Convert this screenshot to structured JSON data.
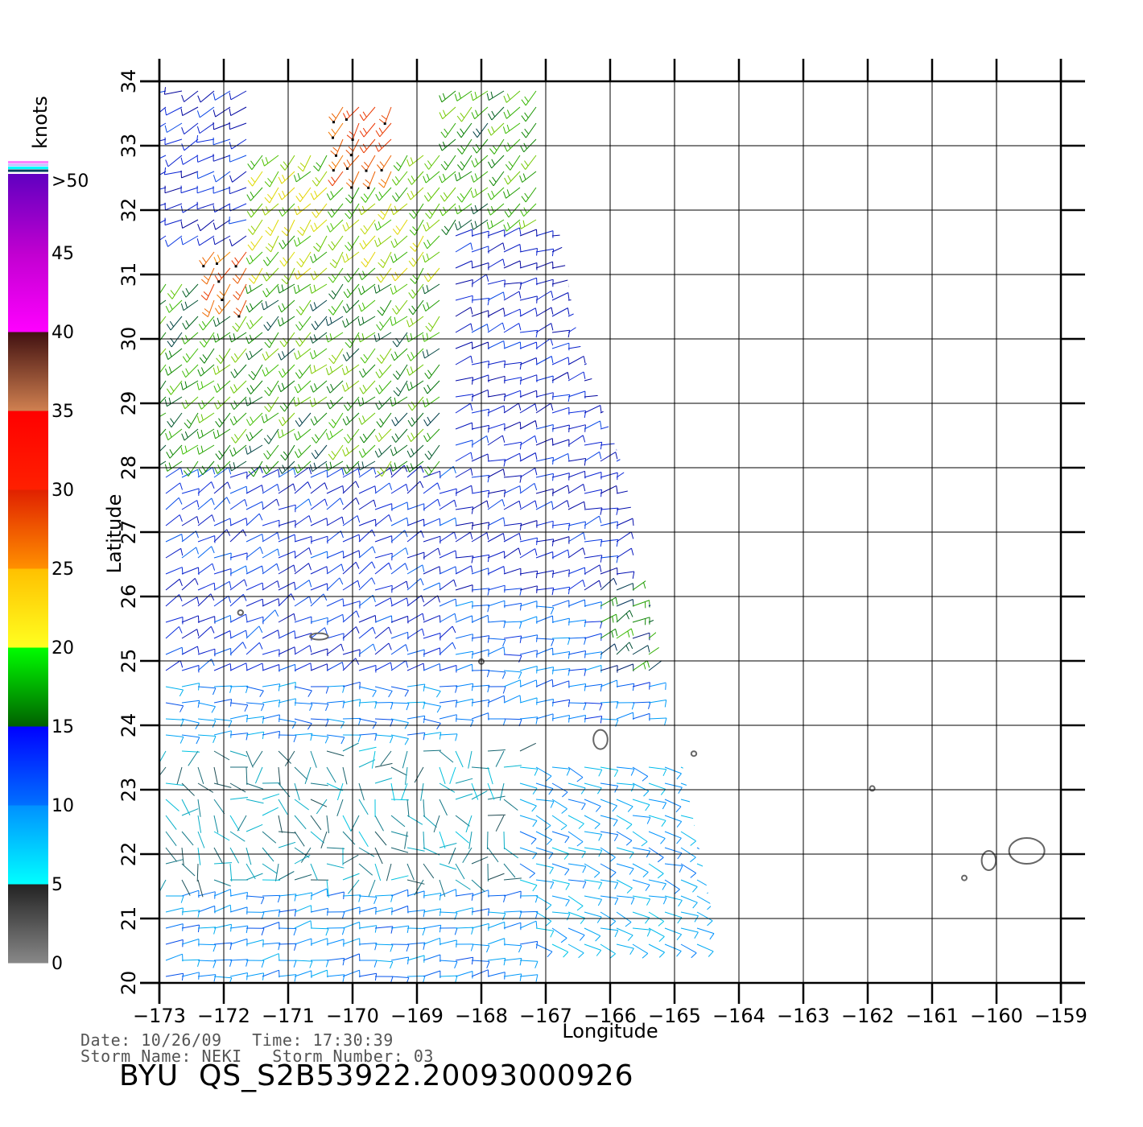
{
  "chart_data": {
    "type": "map",
    "title": "BYU  QS_S2B53922.20093000926",
    "xlabel": "Longitude",
    "ylabel": "Latitude",
    "xlim": [
      -173,
      -159
    ],
    "ylim": [
      20,
      34
    ],
    "x_ticks": [
      "-173",
      "-172",
      "-171",
      "-170",
      "-169",
      "-168",
      "-167",
      "-166",
      "-165",
      "-164",
      "-163",
      "-162",
      "-161",
      "-160",
      "-159"
    ],
    "y_ticks": [
      "20",
      "21",
      "22",
      "23",
      "24",
      "25",
      "26",
      "27",
      "28",
      "29",
      "30",
      "31",
      "32",
      "33",
      "34"
    ],
    "grid": true,
    "colorbar": {
      "unit": "knots",
      "labels": [
        "0",
        "5",
        "10",
        "15",
        "20",
        "25",
        "30",
        "35",
        "40",
        "45",
        ">50"
      ],
      "bands": [
        {
          "from": 0,
          "to": 5,
          "colors": [
            "#888888",
            "#222222"
          ]
        },
        {
          "from": 5,
          "to": 10,
          "colors": [
            "#00ffff",
            "#0090ff"
          ]
        },
        {
          "from": 10,
          "to": 15,
          "colors": [
            "#0070ff",
            "#0000ff"
          ]
        },
        {
          "from": 15,
          "to": 20,
          "colors": [
            "#006000",
            "#00ff00"
          ]
        },
        {
          "from": 20,
          "to": 25,
          "colors": [
            "#ffff20",
            "#ffc000"
          ]
        },
        {
          "from": 25,
          "to": 30,
          "colors": [
            "#ff9000",
            "#e02000"
          ]
        },
        {
          "from": 30,
          "to": 35,
          "colors": [
            "#ff2000",
            "#ff0000"
          ]
        },
        {
          "from": 35,
          "to": 40,
          "colors": [
            "#d08050",
            "#401010"
          ]
        },
        {
          "from": 40,
          "to": 45,
          "colors": [
            "#ff00ff",
            "#c000d0"
          ]
        },
        {
          "from": 45,
          "to": 50,
          "colors": [
            "#c000d0",
            "#6000c0"
          ]
        }
      ],
      "top_stripes": [
        "#ff80ff",
        "#c0c0ff",
        "#00ffff",
        "#004060"
      ]
    },
    "swath_edge": [
      [
        -173,
        34
      ],
      [
        -167.1,
        34
      ],
      [
        -166.9,
        32.3
      ],
      [
        -166.5,
        30
      ],
      [
        -165.8,
        28
      ],
      [
        -165.4,
        26
      ],
      [
        -165.2,
        25
      ],
      [
        -165,
        24
      ],
      [
        -164.6,
        22
      ],
      [
        -164.4,
        21
      ],
      [
        -163.8,
        20
      ],
      [
        -173,
        20
      ]
    ],
    "wind_regions": [
      {
        "lon": [
          -173,
          -168.5
        ],
        "lat": [
          28,
          31
        ],
        "speed_kt": 17,
        "dir_deg": 225
      },
      {
        "lon": [
          -171.5,
          -168.5
        ],
        "lat": [
          31,
          33
        ],
        "speed_kt": 19,
        "dir_deg": 220
      },
      {
        "lon": [
          -170.3,
          -169.3
        ],
        "lat": [
          32.6,
          33.8
        ],
        "speed_kt": 28,
        "dir_deg": 215
      },
      {
        "lon": [
          -172.3,
          -171.5
        ],
        "lat": [
          30.6,
          31.7
        ],
        "speed_kt": 27,
        "dir_deg": 215
      },
      {
        "lon": [
          -168.5,
          -167.1
        ],
        "lat": [
          31.8,
          34
        ],
        "speed_kt": 17,
        "dir_deg": 225
      },
      {
        "lon": [
          -173,
          -171.5
        ],
        "lat": [
          31.5,
          34
        ],
        "speed_kt": 12,
        "dir_deg": 245
      },
      {
        "lon": [
          -168.6,
          -165.8
        ],
        "lat": [
          26,
          31.8
        ],
        "speed_kt": 12,
        "dir_deg": 70
      },
      {
        "lon": [
          -173,
          -168.5
        ],
        "lat": [
          24.6,
          28
        ],
        "speed_kt": 11,
        "dir_deg": 60
      },
      {
        "lon": [
          -168.5,
          -165.3
        ],
        "lat": [
          24,
          26
        ],
        "speed_kt": 9,
        "dir_deg": 80
      },
      {
        "lon": [
          -173,
          -168.5
        ],
        "lat": [
          23.6,
          24.6
        ],
        "speed_kt": 8,
        "dir_deg": 90
      },
      {
        "lon": [
          -173,
          -167.4
        ],
        "lat": [
          21.4,
          23.6
        ],
        "speed_kt": 3,
        "dir_deg": 140
      },
      {
        "lon": [
          -167.4,
          -164.6
        ],
        "lat": [
          20.5,
          23.5
        ],
        "speed_kt": 7,
        "dir_deg": 110
      },
      {
        "lon": [
          -173,
          -167.4
        ],
        "lat": [
          20,
          21.4
        ],
        "speed_kt": 8,
        "dir_deg": 80
      },
      {
        "lon": [
          -166.2,
          -165.2
        ],
        "lat": [
          24.8,
          26.2
        ],
        "speed_kt": 16,
        "dir_deg": 60
      }
    ],
    "islands": [
      {
        "name": "",
        "center": [
          -170.52,
          25.38
        ],
        "size": [
          0.28,
          0.1
        ]
      },
      {
        "name": "",
        "center": [
          -171.74,
          25.75
        ],
        "size": [
          0.08,
          0.06
        ]
      },
      {
        "name": "",
        "center": [
          -168.0,
          24.99
        ],
        "size": [
          0.06,
          0.04
        ]
      },
      {
        "name": "",
        "center": [
          -166.15,
          23.78
        ],
        "size": [
          0.22,
          0.3
        ]
      },
      {
        "name": "",
        "center": [
          -164.7,
          23.56
        ],
        "size": [
          0.08,
          0.06
        ]
      },
      {
        "name": "",
        "center": [
          -161.93,
          23.02
        ],
        "size": [
          0.06,
          0.05
        ]
      },
      {
        "name": "",
        "center": [
          -160.12,
          21.9
        ],
        "size": [
          0.22,
          0.3
        ]
      },
      {
        "name": "",
        "center": [
          -159.53,
          22.05
        ],
        "size": [
          0.55,
          0.4
        ]
      },
      {
        "name": "",
        "center": [
          -160.5,
          21.63
        ],
        "size": [
          0.06,
          0.06
        ]
      }
    ]
  },
  "meta": {
    "line1": "Date: 10/26/09   Time: 17:30:39",
    "line2": "Storm Name: NEKI   Storm Number: 03"
  }
}
